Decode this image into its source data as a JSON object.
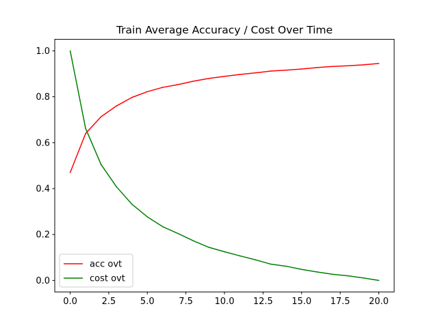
{
  "chart_data": {
    "type": "line",
    "title": "Train Average Accuracy / Cost Over Time",
    "xlabel": "",
    "ylabel": "",
    "xlim": [
      -1,
      21
    ],
    "ylim": [
      -0.05,
      1.05
    ],
    "x_ticks": [
      0,
      2.5,
      5,
      7.5,
      10,
      12.5,
      15,
      17.5,
      20
    ],
    "x_tick_labels": [
      "0.0",
      "2.5",
      "5.0",
      "7.5",
      "10.0",
      "12.5",
      "15.0",
      "17.5",
      "20.0"
    ],
    "y_ticks": [
      0,
      0.2,
      0.4,
      0.6,
      0.8,
      1.0
    ],
    "y_tick_labels": [
      "0.0",
      "0.2",
      "0.4",
      "0.6",
      "0.8",
      "1.0"
    ],
    "grid": false,
    "legend_position": "lower-left",
    "x": [
      0,
      1,
      2,
      3,
      4,
      5,
      6,
      7,
      8,
      9,
      10,
      11,
      12,
      13,
      14,
      15,
      16,
      17,
      18,
      19,
      20
    ],
    "series": [
      {
        "name": "acc ovt",
        "color": "#ff0000",
        "values": [
          0.47,
          0.64,
          0.713,
          0.76,
          0.797,
          0.822,
          0.841,
          0.853,
          0.868,
          0.88,
          0.889,
          0.897,
          0.904,
          0.912,
          0.916,
          0.921,
          0.927,
          0.932,
          0.935,
          0.939,
          0.945
        ]
      },
      {
        "name": "cost ovt",
        "color": "#008000",
        "values": [
          1.0,
          0.662,
          0.505,
          0.408,
          0.332,
          0.277,
          0.234,
          0.204,
          0.172,
          0.144,
          0.125,
          0.107,
          0.09,
          0.071,
          0.062,
          0.048,
          0.037,
          0.027,
          0.02,
          0.011,
          0.0
        ]
      }
    ]
  }
}
